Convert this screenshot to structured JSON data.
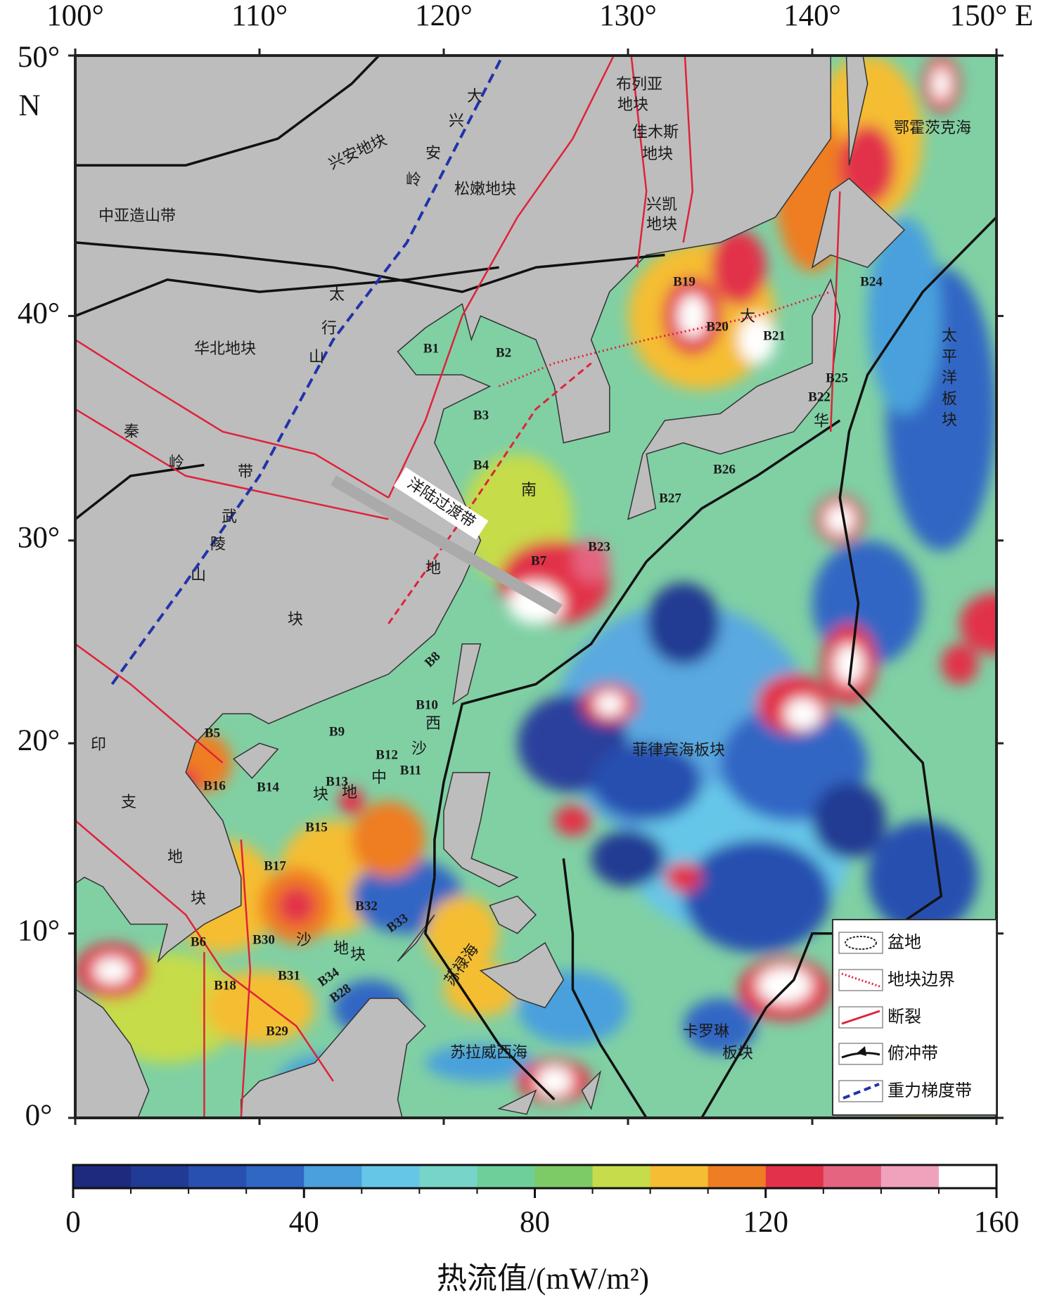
{
  "map": {
    "xlim": [
      100,
      150
    ],
    "ylim": [
      0,
      50
    ],
    "xticks": [
      {
        "value": 100,
        "label": "100°"
      },
      {
        "value": 110,
        "label": "110°"
      },
      {
        "value": 120,
        "label": "120°"
      },
      {
        "value": 130,
        "label": "130°"
      },
      {
        "value": 140,
        "label": "140°"
      },
      {
        "value": 150,
        "label": "150° E"
      }
    ],
    "yticks": [
      {
        "value": 0,
        "label": "0°"
      },
      {
        "value": 10,
        "label": "10°"
      },
      {
        "value": 20,
        "label": "20°"
      },
      {
        "value": 30,
        "label": "30°"
      },
      {
        "value": 40,
        "label": "40°"
      },
      {
        "value": 50,
        "label": "50°"
      }
    ],
    "lat_unit": "N",
    "labels": [
      "中亚造山带",
      "兴安地块",
      "大",
      "兴",
      "安",
      "岭",
      "松嫩地块",
      "布列亚",
      "地块",
      "佳木斯",
      "地块",
      "兴凯",
      "地块",
      "鄂霍茨克海",
      "太",
      "行",
      "山",
      "华北地块",
      "秦",
      "岭",
      "带",
      "武",
      "陵",
      "山",
      "华",
      "南",
      "地",
      "块",
      "洋陆过渡带",
      "太平洋板块",
      "菲律宾海板块",
      "卡罗琳",
      "板块",
      "苏拉威西海",
      "苏禄海",
      "印",
      "支",
      "地",
      "块",
      "西",
      "沙",
      "中",
      "块",
      "地",
      "沙",
      "地",
      "块",
      "大"
    ],
    "basins": [
      "B1",
      "B2",
      "B3",
      "B4",
      "B5",
      "B6",
      "B7",
      "B8",
      "B9",
      "B10",
      "B11",
      "B12",
      "B13",
      "B14",
      "B15",
      "B16",
      "B17",
      "B18",
      "B19",
      "B20",
      "B21",
      "B22",
      "B23",
      "B24",
      "B25",
      "B26",
      "B27",
      "B28",
      "B29",
      "B30",
      "B31",
      "B32",
      "B33",
      "B34"
    ],
    "legend": [
      "盆地",
      "地块边界",
      "断裂",
      "俯冲带",
      "重力梯度带"
    ]
  },
  "colorbar": {
    "lim": [
      0,
      160
    ],
    "ticks": [
      0,
      40,
      80,
      120,
      160
    ],
    "colors": [
      "#1d2a7d",
      "#213a93",
      "#2750b0",
      "#3066c4",
      "#4aa0dc",
      "#66c6e8",
      "#76d4c8",
      "#6fcf9a",
      "#7dcb66",
      "#c6dc4a",
      "#f5bd33",
      "#ef7d24",
      "#e2314a",
      "#e56480",
      "#f0a2bd",
      "#ffffff"
    ],
    "label": "热流值/(mW/m²)"
  }
}
